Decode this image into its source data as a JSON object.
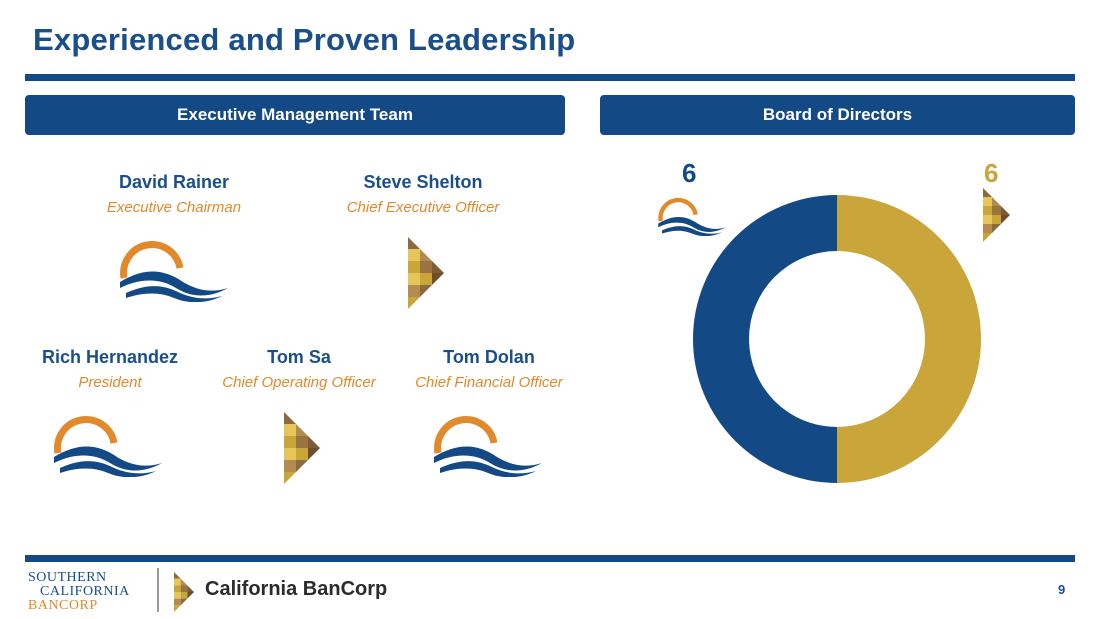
{
  "slide": {
    "title": "Experienced and Proven Leadership",
    "page_number": "9"
  },
  "sections": {
    "exec_header": "Executive Management Team",
    "board_header": "Board of Directors"
  },
  "executives": [
    {
      "name": "David Rainer",
      "role": "Executive Chairman",
      "logo": "scb-sun-wave-icon"
    },
    {
      "name": "Steve Shelton",
      "role": "Chief Executive Officer",
      "logo": "cbc-triangle-icon"
    },
    {
      "name": "Rich Hernandez",
      "role": "President",
      "logo": "scb-sun-wave-icon"
    },
    {
      "name": "Tom Sa",
      "role": "Chief Operating Officer",
      "logo": "cbc-triangle-icon"
    },
    {
      "name": "Tom Dolan",
      "role": "Chief Financial Officer",
      "logo": "scb-sun-wave-icon"
    }
  ],
  "board": {
    "left_count": "6",
    "right_count": "6"
  },
  "chart_data": {
    "type": "pie",
    "donut": true,
    "categories": [
      "",
      ""
    ],
    "values": [
      6,
      6
    ],
    "colors": [
      "#c9a53a",
      "#134a85"
    ]
  },
  "footer": {
    "brand1_line1": "SOUTHERN",
    "brand1_line2": "CALIFORNIA",
    "brand1_line3": "BANCORP",
    "brand2": "California BanCorp"
  },
  "colors": {
    "navy": "#134a85",
    "gold": "#c9a53a",
    "orange": "#e08a2c"
  }
}
